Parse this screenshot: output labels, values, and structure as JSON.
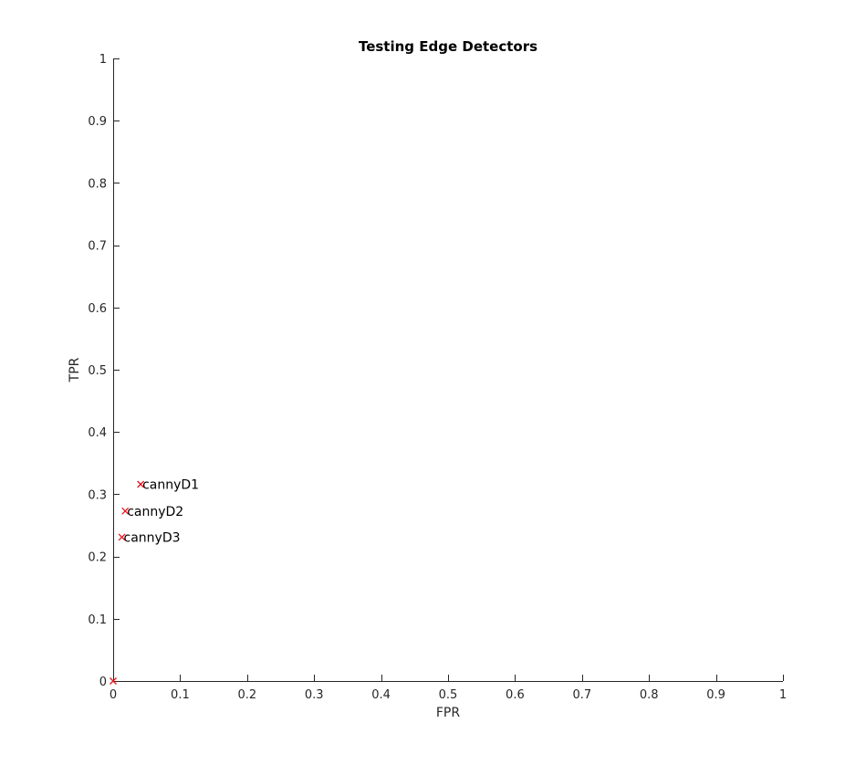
{
  "chart_data": {
    "type": "scatter",
    "title": "Testing Edge Detectors",
    "xlabel": "FPR",
    "ylabel": "TPR",
    "xlim": [
      0,
      1
    ],
    "ylim": [
      0,
      1
    ],
    "xticks": [
      "0",
      "0.1",
      "0.2",
      "0.3",
      "0.4",
      "0.5",
      "0.6",
      "0.7",
      "0.8",
      "0.9",
      "1"
    ],
    "yticks": [
      "0",
      "0.1",
      "0.2",
      "0.3",
      "0.4",
      "0.5",
      "0.6",
      "0.7",
      "0.8",
      "0.9",
      "1"
    ],
    "grid": false,
    "marker_color": "#e8141c",
    "points": [
      {
        "x": 0.041,
        "y": 0.316,
        "label": "cannyD1"
      },
      {
        "x": 0.018,
        "y": 0.273,
        "label": "cannyD2"
      },
      {
        "x": 0.013,
        "y": 0.231,
        "label": "cannyD3"
      },
      {
        "x": 0.0,
        "y": 0.0,
        "label": ""
      }
    ]
  }
}
